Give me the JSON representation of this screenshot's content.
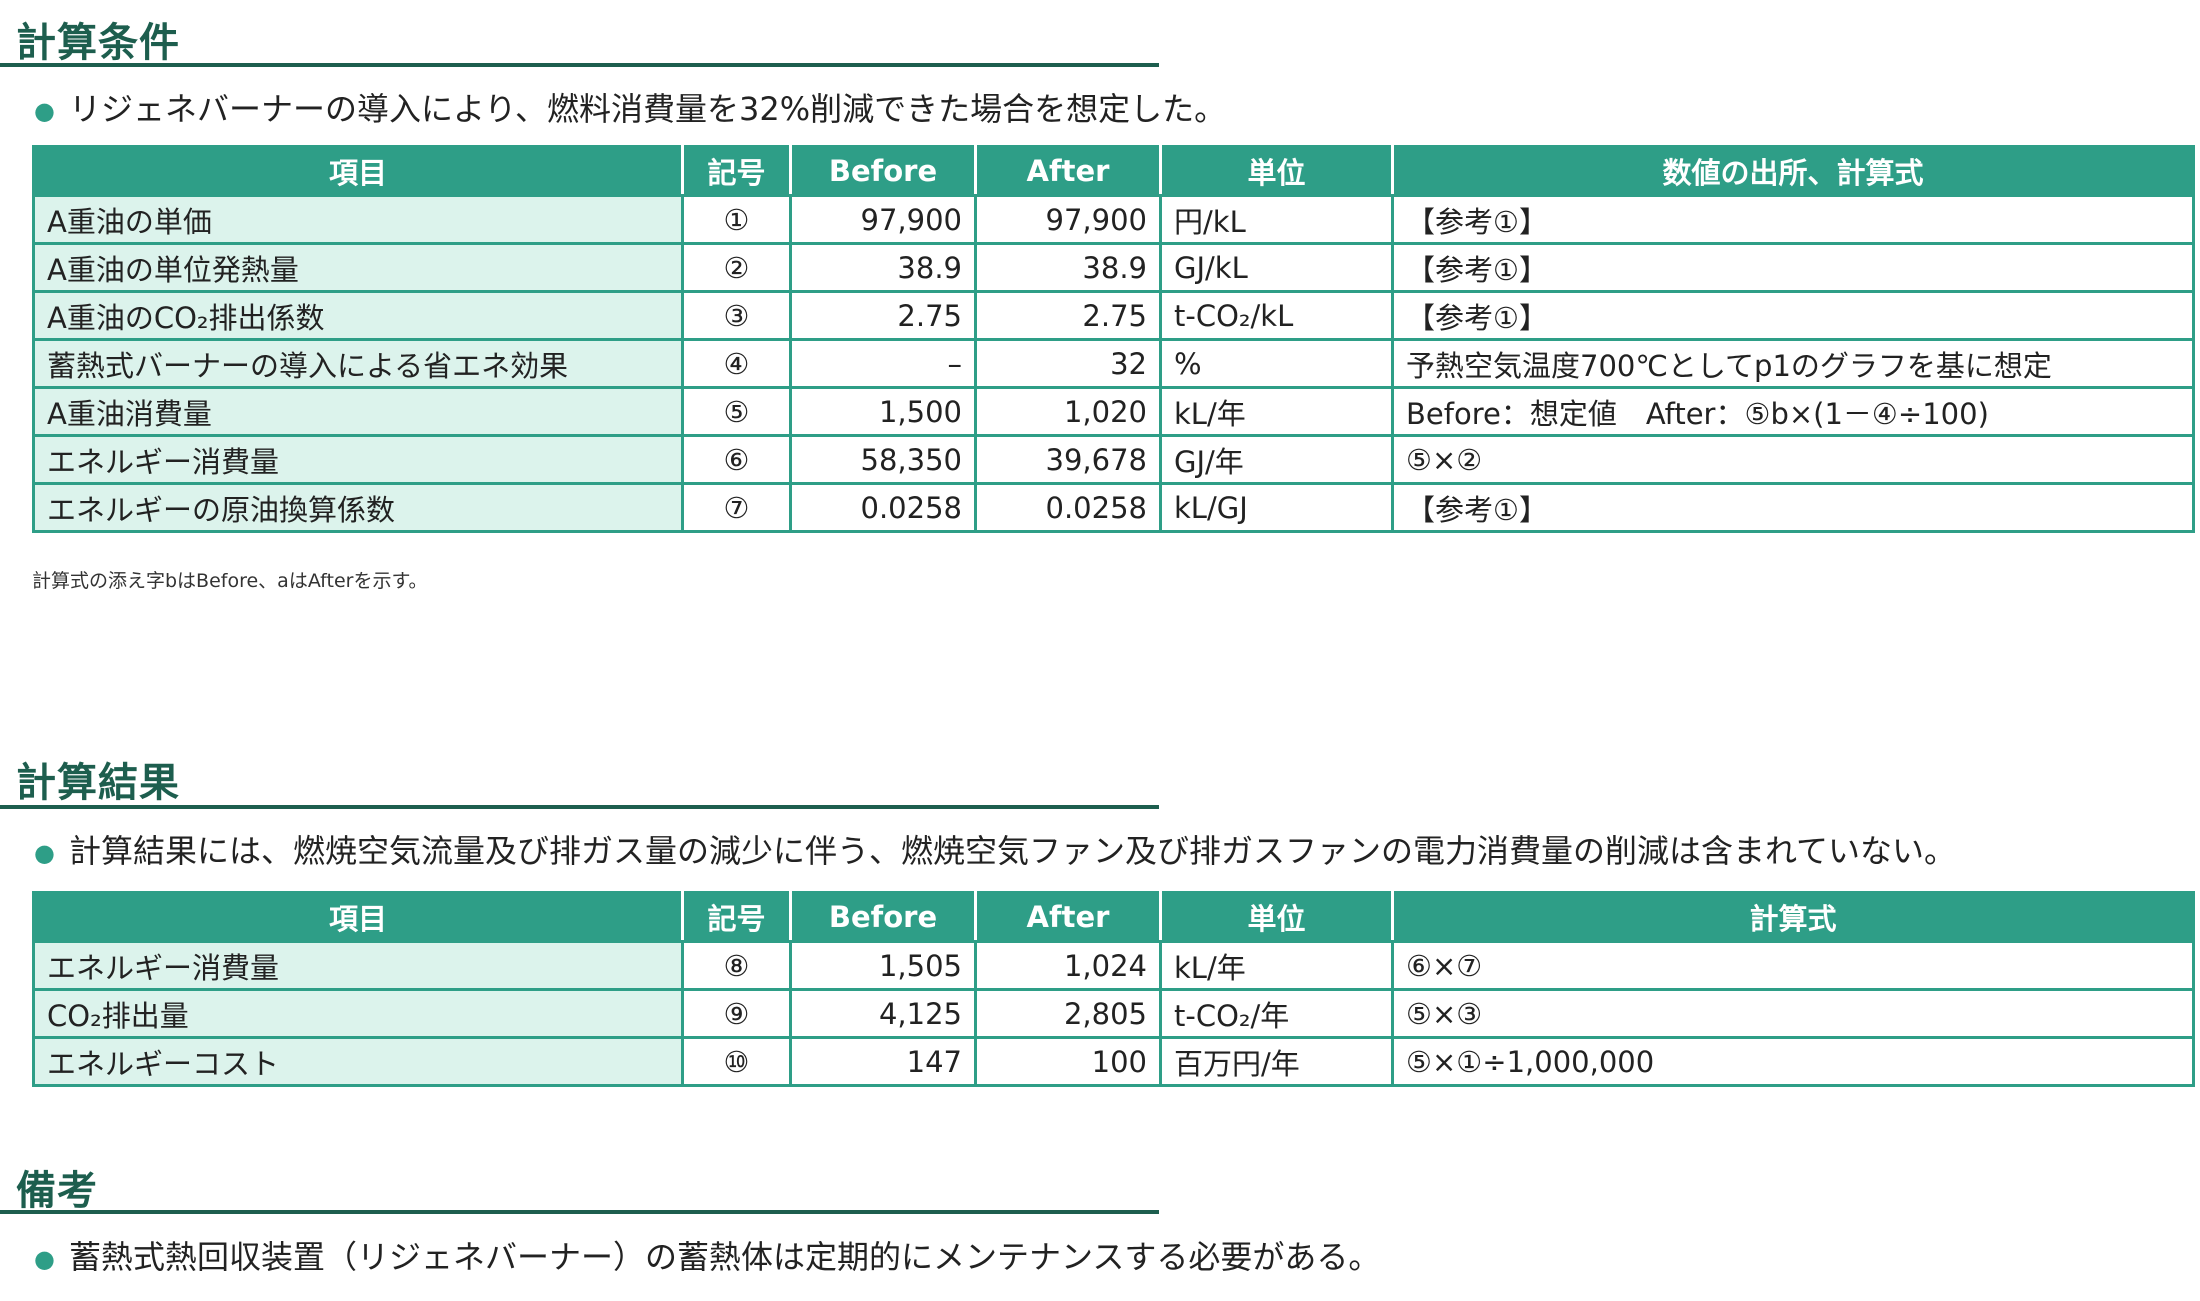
{
  "section1": {
    "title": "計算条件",
    "bullet": "リジェネバーナーの導入により、燃料消費量を32%削減できた場合を想定した。",
    "headers": [
      "項目",
      "記号",
      "Before",
      "After",
      "単位",
      "数値の出所、計算式"
    ],
    "rows": [
      {
        "item": "A重油の単価",
        "symbol": "①",
        "before": "97,900",
        "after": "97,900",
        "unit": "円/kL",
        "source": "【参考①】"
      },
      {
        "item": "A重油の単位発熱量",
        "symbol": "②",
        "before": "38.9",
        "after": "38.9",
        "unit": "GJ/kL",
        "source": "【参考①】"
      },
      {
        "item": "A重油のCO₂排出係数",
        "symbol": "③",
        "before": "2.75",
        "after": "2.75",
        "unit": "t-CO₂/kL",
        "source": "【参考①】"
      },
      {
        "item": "蓄熱式バーナーの導入による省エネ効果",
        "symbol": "④",
        "before": "–",
        "after": "32",
        "unit": "%",
        "source": "予熱空気温度700℃としてp1のグラフを基に想定"
      },
      {
        "item": "A重油消費量",
        "symbol": "⑤",
        "before": "1,500",
        "after": "1,020",
        "unit": "kL/年",
        "source": "Before：想定値　After：⑤b×(1－④÷100)"
      },
      {
        "item": "エネルギー消費量",
        "symbol": "⑥",
        "before": "58,350",
        "after": "39,678",
        "unit": "GJ/年",
        "source": "⑤×②"
      },
      {
        "item": "エネルギーの原油換算係数",
        "symbol": "⑦",
        "before": "0.0258",
        "after": "0.0258",
        "unit": "kL/GJ",
        "source": "【参考①】"
      }
    ],
    "footnote": "計算式の添え字bはBefore、aはAfterを示す。"
  },
  "section2": {
    "title": "計算結果",
    "bullet": "計算結果には、燃焼空気流量及び排ガス量の減少に伴う、燃焼空気ファン及び排ガスファンの電力消費量の削減は含まれていない。",
    "headers": [
      "項目",
      "記号",
      "Before",
      "After",
      "単位",
      "計算式"
    ],
    "rows": [
      {
        "item": "エネルギー消費量",
        "symbol": "⑧",
        "before": "1,505",
        "after": "1,024",
        "unit": "kL/年",
        "source": "⑥×⑦"
      },
      {
        "item": "CO₂排出量",
        "symbol": "⑨",
        "before": "4,125",
        "after": "2,805",
        "unit": "t-CO₂/年",
        "source": "⑤×③"
      },
      {
        "item": "エネルギーコスト",
        "symbol": "⑩",
        "before": "147",
        "after": "100",
        "unit": "百万円/年",
        "source": "⑤×①÷1,000,000"
      }
    ]
  },
  "section3": {
    "title": "備考",
    "bullet": "蓄熱式熱回収装置（リジェネバーナー）の蓄熱体は定期的にメンテナンスする必要がある。"
  }
}
